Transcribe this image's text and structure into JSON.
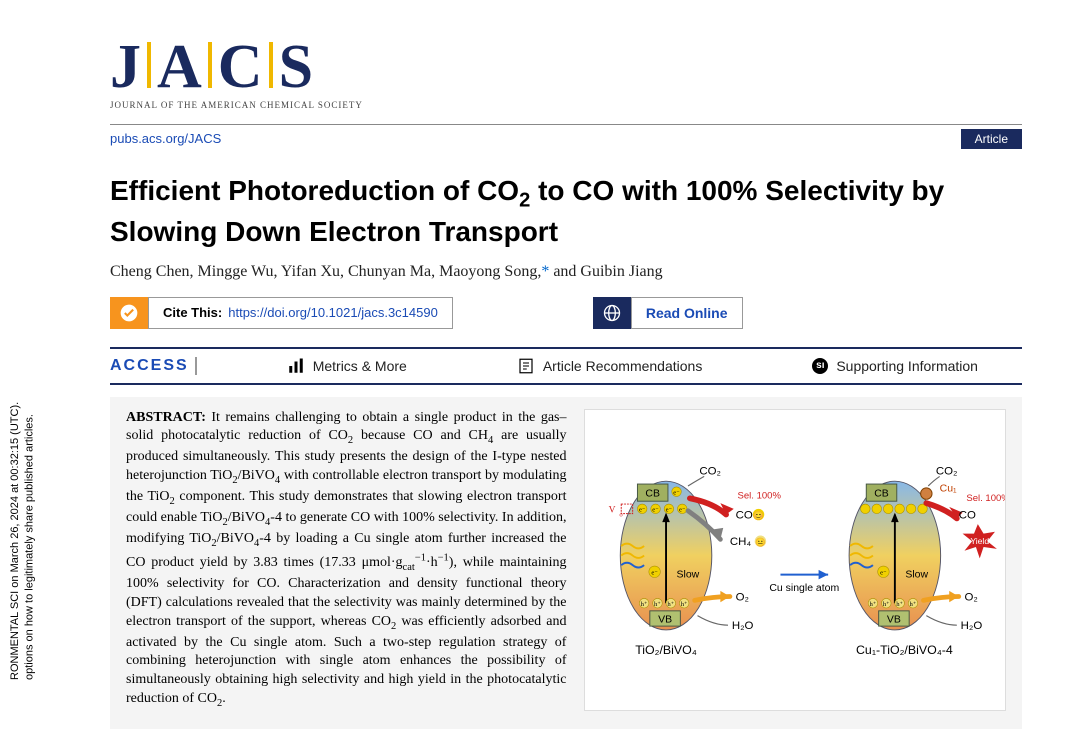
{
  "journal": {
    "logo_letters": [
      "J",
      "A",
      "C",
      "S"
    ],
    "logo_color": "#1a2a5e",
    "logo_sep_color": "#f0b800",
    "subtitle": "JOURNAL OF THE AMERICAN CHEMICAL SOCIETY",
    "url": "pubs.acs.org/JACS",
    "badge": "Article"
  },
  "article": {
    "title_html": "Efficient Photoreduction of CO<sub>2</sub> to CO with 100% Selectivity by Slowing Down Electron Transport",
    "authors_html": "Cheng Chen, Mingge Wu, Yifan Xu, Chunyan Ma, Maoyong Song,<span class='corr'>*</span> and Guibin Jiang",
    "cite_label": "Cite This:",
    "doi": "https://doi.org/10.1021/jacs.3c14590",
    "read_online": "Read Online"
  },
  "access": {
    "label": "ACCESS",
    "metrics": "Metrics & More",
    "recommendations": "Article Recommendations",
    "supporting": "Supporting Information"
  },
  "abstract": {
    "label": "ABSTRACT:",
    "body_html": "It remains challenging to obtain a single product in the gas–solid photocatalytic reduction of CO<sub>2</sub> because CO and CH<sub>4</sub> are usually produced simultaneously. This study presents the design of the I-type nested heterojunction TiO<sub>2</sub>/BiVO<sub>4</sub> with controllable electron transport by modulating the TiO<sub>2</sub> component. This study demonstrates that slowing electron transport could enable TiO<sub>2</sub>/BiVO<sub>4</sub>-4 to generate CO with 100% selectivity. In addition, modifying TiO<sub>2</sub>/BiVO<sub>4</sub>-4 by loading a Cu single atom further increased the CO product yield by 3.83 times (17.33 μmol·g<sub>cat</sub><sup>−1</sup>·h<sup>−1</sup>), while maintaining 100% selectivity for CO. Characterization and density functional theory (DFT) calculations revealed that the selectivity was mainly determined by the electron transport of the support, whereas CO<sub>2</sub> was efficiently adsorbed and activated by the Cu single atom. Such a two-step regulation strategy of combining heterojunction with single atom enhances the possibility of simultaneously obtaining high selectivity and high yield in the photocatalytic reduction of CO<sub>2</sub>."
  },
  "sidebar": {
    "line1": "RONMENTAL SCI on March 26, 2024 at 00:32:15 (UTC).",
    "line2": "options on how to legitimately share published articles."
  },
  "toc": {
    "bg": "#ffffff",
    "ellipse_gradient_top": "#88b8e8",
    "ellipse_gradient_mid": "#f0d060",
    "ellipse_gradient_bot": "#e89050",
    "cb_bg": "#a0b060",
    "cb_border": "#445544",
    "vb_bg": "#b0c070",
    "label_color": "#000000",
    "sel_color": "#d02020",
    "arrow_red": "#d02020",
    "arrow_orange": "#f0a020",
    "arrow_gray": "#808080",
    "arrow_blue": "#2060d0",
    "electron_color": "#f0d000",
    "hole_color": "#f0e080",
    "left_caption": "TiO₂/BiVO₄",
    "right_caption": "Cu₁-TiO₂/BiVO₄-4",
    "middle_label": "Cu single atom",
    "co2": "CO₂",
    "co": "CO",
    "ch4": "CH₄",
    "o2": "O₂",
    "h2o": "H₂O",
    "sel": "Sel. 100%",
    "yield": "Yield",
    "slow": "Slow",
    "cb": "CB",
    "vb": "VB",
    "cu1": "Cu₁",
    "vo": "V",
    "electron": "e⁻",
    "hole": "h⁺"
  },
  "colors": {
    "navy": "#1a2a5e",
    "blue_link": "#1a4bb5",
    "orange": "#f7941e",
    "gold": "#f0b800",
    "abstract_bg": "#f4f4f4"
  }
}
